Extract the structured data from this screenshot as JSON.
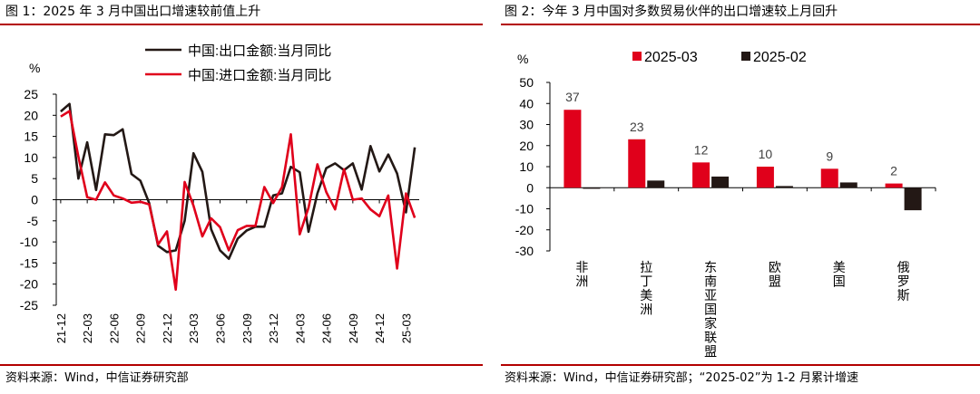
{
  "left": {
    "title": "图 1：2025 年 3 月中国出口增速较前值上升",
    "source": "资料来源：Wind，中信证券研究部"
  },
  "right": {
    "title": "图 2：今年 3 月中国对多数贸易伙伴的出口增速较上月回升",
    "source": "资料来源：Wind，中信证券研究部；“2025-02”为 1-2 月累计增速"
  },
  "colors": {
    "rule": "#b30000",
    "export": "#231815",
    "import": "#e0001b",
    "bar_2503": "#e0001b",
    "bar_2502": "#231815"
  },
  "chart_data": [
    {
      "type": "line",
      "ylabel": "%",
      "ylim": [
        -25,
        25
      ],
      "yticks": [
        25,
        20,
        15,
        10,
        5,
        0,
        -5,
        -10,
        -15,
        -20,
        -25
      ],
      "x_tick_labels": [
        "21-12",
        "22-03",
        "22-06",
        "22-09",
        "22-12",
        "23-03",
        "23-06",
        "23-09",
        "23-12",
        "24-03",
        "24-06",
        "24-09",
        "24-12",
        "25-03"
      ],
      "legend_position": "top",
      "series": [
        {
          "name": "中国:出口金额:当月同比",
          "values": [
            20.9,
            22.7,
            5.0,
            13.6,
            2.3,
            15.5,
            15.3,
            16.7,
            6.1,
            4.5,
            -0.8,
            -10.9,
            -12.4,
            -12.0,
            -5.0,
            11.0,
            6.6,
            -7.0,
            -12.0,
            -14.0,
            -9.2,
            -7.3,
            -6.4,
            -6.4,
            1.0,
            1.5,
            7.8,
            6.5,
            -7.6,
            1.5,
            7.5,
            8.6,
            7.0,
            8.6,
            2.4,
            12.7,
            6.7,
            10.7,
            6.2,
            -3.0,
            12.4
          ]
        },
        {
          "name": "中国:进口金额:当月同比",
          "values": [
            19.7,
            21.0,
            10.2,
            0.6,
            0.0,
            4.1,
            1.0,
            0.3,
            -0.7,
            -0.5,
            -1.1,
            -10.6,
            -7.5,
            -21.3,
            4.2,
            -1.4,
            -8.7,
            -4.4,
            -6.5,
            -12.0,
            -7.2,
            -6.2,
            -6.2,
            3.0,
            -0.8,
            3.0,
            15.5,
            -8.2,
            -1.9,
            8.4,
            1.8,
            -2.3,
            7.2,
            0.0,
            0.3,
            -2.3,
            -3.9,
            1.0,
            -16.3,
            1.5,
            -4.3
          ]
        }
      ]
    },
    {
      "type": "bar",
      "ylabel": "%",
      "ylim": [
        -30,
        50
      ],
      "yticks": [
        50,
        40,
        30,
        20,
        10,
        0,
        -10,
        -20,
        -30
      ],
      "categories": [
        "非洲",
        "拉丁美洲",
        "东南亚国家联盟",
        "欧盟",
        "美国",
        "俄罗斯"
      ],
      "legend_position": "top",
      "series": [
        {
          "name": "2025-03",
          "values": [
            37,
            23,
            12,
            10,
            9,
            2
          ],
          "labels": [
            "37",
            "23",
            "12",
            "10",
            "9",
            "2"
          ]
        },
        {
          "name": "2025-02",
          "values": [
            -0.5,
            3.4,
            5.3,
            0.8,
            2.5,
            -10.7
          ]
        }
      ]
    }
  ]
}
